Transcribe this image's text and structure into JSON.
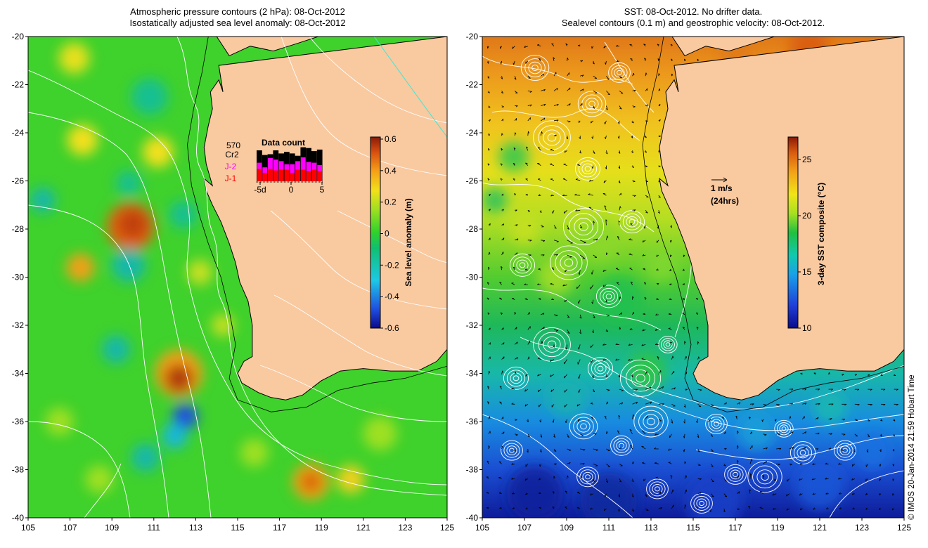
{
  "left_panel": {
    "title_line1": "Atmospheric pressure contours (2 hPa): 08-Oct-2012",
    "title_line2": "Isostatically adjusted sea level anomaly: 08-Oct-2012",
    "colorbar": {
      "label": "Sea level anomaly (m)",
      "range": [
        -0.6,
        0.6
      ],
      "ticks": [
        "0.6",
        "0.4",
        "0.2",
        "0",
        "-0.2",
        "-0.4",
        "-0.6"
      ]
    },
    "data_count": {
      "title": "Data count",
      "number": "570",
      "satellites": [
        {
          "name": "Cr2",
          "color": "#000000"
        },
        {
          "name": "J-2",
          "color": "#ff00ff"
        },
        {
          "name": "J-1",
          "color": "#ff0000"
        }
      ],
      "x_ticks": [
        "-5d",
        "0",
        "5"
      ],
      "bars_black": [
        4,
        3.4,
        3.5,
        4,
        3.6,
        3.8,
        3.6,
        3.3,
        4.4,
        4.3,
        3.9,
        4.1
      ],
      "bars_magenta": [
        2.4,
        1.8,
        3,
        2.8,
        2.6,
        2.2,
        2.2,
        2.6,
        3.1,
        2.5,
        2.4,
        2.1
      ],
      "bars_red": [
        1.6,
        1.1,
        1.6,
        1.4,
        1.5,
        1.5,
        1.1,
        1.5,
        1.5,
        1.3,
        1.5,
        1.3
      ]
    }
  },
  "right_panel": {
    "title_line1": "SST: 08-Oct-2012. No drifter data.",
    "title_line2": "Sealevel contours (0.1 m) and geostrophic velocity: 08-Oct-2012.",
    "colorbar": {
      "label": "3-day SST composite (°C)",
      "range": [
        10,
        27
      ],
      "ticks": [
        "25",
        "20",
        "15",
        "10"
      ]
    },
    "velocity_scale_label_1": "1 m/s",
    "velocity_scale_label_2": "(24hrs)"
  },
  "axes": {
    "y_ticks": [
      "-20",
      "-22",
      "-24",
      "-26",
      "-28",
      "-30",
      "-32",
      "-34",
      "-36",
      "-38",
      "-40"
    ],
    "x_ticks": [
      "105",
      "107",
      "109",
      "111",
      "113",
      "115",
      "117",
      "119",
      "121",
      "123",
      "125"
    ],
    "lon_range": [
      105,
      125
    ],
    "lat_range": [
      -40,
      -20
    ]
  },
  "credit": "© IMOS 20-Jan-2014 21:59 Hobart Time",
  "colors": {
    "land": "#f9c9a0",
    "sla_ocean": "#3fd12c",
    "contour": "#ffffff",
    "coastline": "#000000"
  }
}
